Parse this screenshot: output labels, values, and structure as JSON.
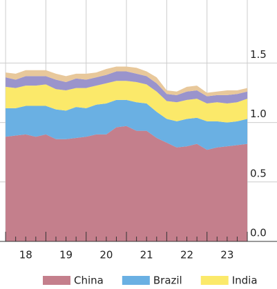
{
  "chart_data": {
    "type": "stacked-area",
    "x": [
      18,
      18.25,
      18.5,
      18.75,
      19,
      19.25,
      19.5,
      19.75,
      20,
      20.25,
      20.5,
      20.75,
      21,
      21.25,
      21.5,
      21.75,
      22,
      22.25,
      22.5,
      22.75,
      23,
      23.25,
      23.5,
      23.75,
      24
    ],
    "series": [
      {
        "name": "China",
        "color": "#c47f8c",
        "values": [
          0.88,
          0.89,
          0.9,
          0.88,
          0.9,
          0.86,
          0.86,
          0.87,
          0.88,
          0.9,
          0.9,
          0.96,
          0.97,
          0.93,
          0.93,
          0.87,
          0.83,
          0.79,
          0.8,
          0.82,
          0.77,
          0.79,
          0.8,
          0.81,
          0.82
        ]
      },
      {
        "name": "Brazil",
        "color": "#6ab0e3",
        "values": [
          0.24,
          0.23,
          0.24,
          0.26,
          0.24,
          0.25,
          0.24,
          0.26,
          0.24,
          0.25,
          0.26,
          0.23,
          0.22,
          0.24,
          0.23,
          0.22,
          0.2,
          0.22,
          0.23,
          0.22,
          0.24,
          0.22,
          0.2,
          0.2,
          0.21
        ]
      },
      {
        "name": "India",
        "color": "#fbe96a",
        "values": [
          0.18,
          0.17,
          0.17,
          0.17,
          0.18,
          0.17,
          0.17,
          0.16,
          0.17,
          0.16,
          0.17,
          0.16,
          0.16,
          0.17,
          0.16,
          0.17,
          0.15,
          0.16,
          0.16,
          0.16,
          0.15,
          0.16,
          0.16,
          0.16,
          0.17
        ]
      },
      {
        "color": "#9a94cc",
        "values": [
          0.08,
          0.07,
          0.08,
          0.08,
          0.07,
          0.08,
          0.07,
          0.08,
          0.07,
          0.07,
          0.07,
          0.08,
          0.08,
          0.07,
          0.07,
          0.07,
          0.06,
          0.06,
          0.07,
          0.07,
          0.06,
          0.06,
          0.07,
          0.07,
          0.06
        ]
      },
      {
        "color": "#e8c89b",
        "values": [
          0.04,
          0.05,
          0.05,
          0.05,
          0.05,
          0.05,
          0.05,
          0.04,
          0.05,
          0.04,
          0.05,
          0.04,
          0.04,
          0.05,
          0.04,
          0.05,
          0.03,
          0.03,
          0.04,
          0.04,
          0.03,
          0.03,
          0.04,
          0.03,
          0.03
        ]
      }
    ],
    "xlim": [
      17.93,
      24
    ],
    "xticks": [
      {
        "value": 18.5,
        "label": "18"
      },
      {
        "value": 19.5,
        "label": "19"
      },
      {
        "value": 20.5,
        "label": "20"
      },
      {
        "value": 21.5,
        "label": "21"
      },
      {
        "value": 22.5,
        "label": "22"
      },
      {
        "value": 23.5,
        "label": "23"
      }
    ],
    "xtick_marks": [
      18,
      18.25,
      18.5,
      18.75,
      19,
      19.25,
      19.5,
      19.75,
      20,
      20.25,
      20.5,
      20.75,
      21,
      21.25,
      21.5,
      21.75,
      22,
      22.25,
      22.5,
      22.75,
      23,
      23.25,
      23.5,
      23.75,
      24
    ],
    "ylim": [
      0,
      2.03
    ],
    "yticks": [
      {
        "value": 0,
        "label": "0.0"
      },
      {
        "value": 0.5,
        "label": "0.5"
      },
      {
        "value": 1,
        "label": "1.0"
      },
      {
        "value": 1.5,
        "label": "1.5"
      }
    ],
    "grid": true
  }
}
